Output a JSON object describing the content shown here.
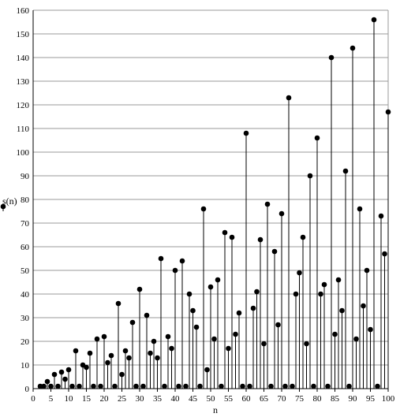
{
  "chart_data": {
    "type": "scatter",
    "style": "stem",
    "xlabel": "n",
    "ylabel": "s(n)",
    "xlim": [
      0,
      100
    ],
    "ylim": [
      0,
      160
    ],
    "xticks": [
      0,
      5,
      10,
      15,
      20,
      25,
      30,
      35,
      40,
      45,
      50,
      55,
      60,
      65,
      70,
      75,
      80,
      85,
      90,
      95,
      100
    ],
    "yticks": [
      0,
      10,
      20,
      30,
      40,
      50,
      60,
      70,
      80,
      90,
      100,
      110,
      120,
      130,
      140,
      150,
      160
    ],
    "grid": "horizontal",
    "color": "#000000",
    "series": [
      {
        "x": [
          2,
          3,
          4,
          5,
          6,
          7,
          8,
          9,
          10,
          11,
          12,
          13,
          14,
          15,
          16,
          17,
          18,
          19,
          20,
          21,
          22,
          23,
          24,
          25,
          26,
          27,
          28,
          29,
          30,
          31,
          32,
          33,
          34,
          35,
          36,
          37,
          38,
          39,
          40,
          41,
          42,
          43,
          44,
          45,
          46,
          47,
          48,
          49,
          50,
          51,
          52,
          53,
          54,
          55,
          56,
          57,
          58,
          59,
          60,
          61,
          62,
          63,
          64,
          65,
          66,
          67,
          68,
          69,
          70,
          71,
          72,
          73,
          74,
          75,
          76,
          77,
          78,
          79,
          80,
          81,
          82,
          83,
          84,
          85,
          86,
          87,
          88,
          89,
          90,
          91,
          92,
          93,
          94,
          95,
          96,
          97,
          98,
          99,
          100
        ],
        "y": [
          1,
          1,
          3,
          1,
          6,
          1,
          7,
          4,
          8,
          1,
          16,
          1,
          10,
          9,
          15,
          1,
          21,
          1,
          22,
          11,
          14,
          1,
          36,
          6,
          16,
          13,
          28,
          1,
          42,
          1,
          31,
          15,
          20,
          13,
          55,
          1,
          22,
          17,
          50,
          1,
          54,
          1,
          40,
          33,
          26,
          1,
          76,
          8,
          43,
          21,
          46,
          1,
          66,
          17,
          64,
          23,
          32,
          1,
          108,
          1,
          34,
          41,
          63,
          19,
          78,
          1,
          58,
          27,
          74,
          1,
          123,
          1,
          40,
          49,
          64,
          19,
          90,
          1,
          106,
          40,
          44,
          1,
          140,
          23,
          46,
          33,
          92,
          1,
          144,
          21,
          76,
          35,
          50,
          25,
          156,
          1,
          73,
          57,
          117
        ]
      }
    ]
  }
}
